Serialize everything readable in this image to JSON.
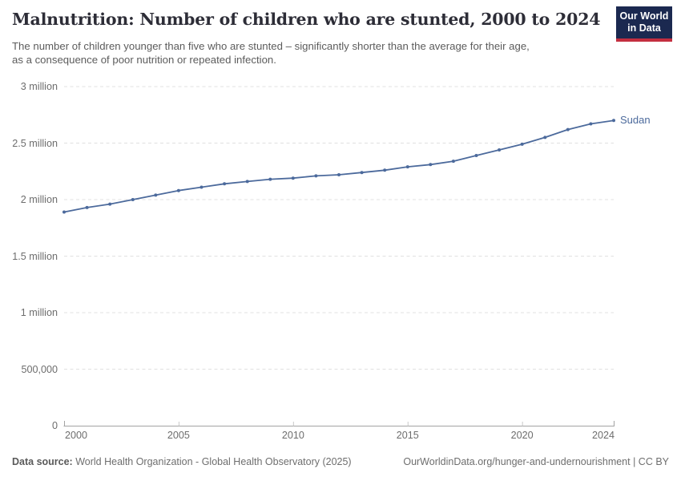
{
  "header": {
    "title": "Malnutrition: Number of children who are stunted, 2000 to 2024",
    "subtitle_line1": "The number of children younger than five who are stunted – significantly shorter than the average for their age,",
    "subtitle_line2": "as a consequence of poor nutrition or repeated infection.",
    "logo": {
      "line1": "Our World",
      "line2": "in Data"
    }
  },
  "chart_data": {
    "type": "line",
    "title": "Malnutrition: Number of children who are stunted, 2000 to 2024",
    "xlabel": "",
    "ylabel": "",
    "xlim": [
      2000,
      2024
    ],
    "ylim": [
      0,
      3000000
    ],
    "grid": "horizontal-dashed",
    "legend_position": "end-of-line",
    "x": [
      2000,
      2001,
      2002,
      2003,
      2004,
      2005,
      2006,
      2007,
      2008,
      2009,
      2010,
      2011,
      2012,
      2013,
      2014,
      2015,
      2016,
      2017,
      2018,
      2019,
      2020,
      2021,
      2022,
      2023,
      2024
    ],
    "series": [
      {
        "name": "Sudan",
        "color": "#4c6a9c",
        "values": [
          1890000,
          1930000,
          1960000,
          2000000,
          2040000,
          2080000,
          2110000,
          2140000,
          2160000,
          2180000,
          2190000,
          2210000,
          2220000,
          2240000,
          2260000,
          2290000,
          2310000,
          2340000,
          2390000,
          2440000,
          2490000,
          2550000,
          2620000,
          2670000,
          2700000
        ]
      }
    ],
    "yticks": [
      {
        "value": 0,
        "label": "0"
      },
      {
        "value": 500000,
        "label": "500,000"
      },
      {
        "value": 1000000,
        "label": "1 million"
      },
      {
        "value": 1500000,
        "label": "1.5 million"
      },
      {
        "value": 2000000,
        "label": "2 million"
      },
      {
        "value": 2500000,
        "label": "2.5 million"
      },
      {
        "value": 3000000,
        "label": "3 million"
      }
    ],
    "xticks": [
      2000,
      2005,
      2010,
      2015,
      2020,
      2024
    ]
  },
  "footer": {
    "datasource_label": "Data source:",
    "datasource_value": "World Health Organization - Global Health Observatory (2025)",
    "link": "OurWorldinData.org/hunger-and-undernourishment | CC BY"
  },
  "colors": {
    "accent": "#4c6a9c",
    "logo_bg": "#1b2950",
    "logo_stripe": "#c32e40",
    "gridline": "#e0e0e0",
    "axis": "#a3a3a3",
    "tick_text": "#6d6d6d"
  }
}
